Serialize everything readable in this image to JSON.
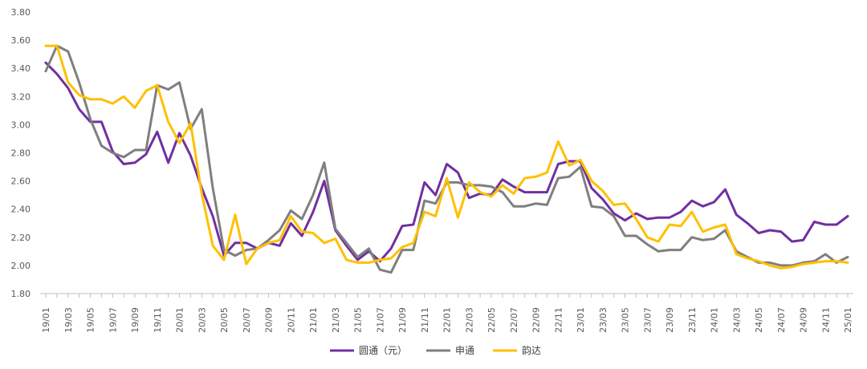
{
  "chart_data": {
    "type": "line",
    "title": "",
    "xlabel": "",
    "ylabel": "",
    "ylim": [
      1.8,
      3.8
    ],
    "yticks": [
      "1.80",
      "2.00",
      "2.20",
      "2.40",
      "2.60",
      "2.80",
      "3.00",
      "3.20",
      "3.40",
      "3.60",
      "3.80"
    ],
    "grid": false,
    "legend_position": "bottom-center",
    "x": [
      "19/01",
      "19/02",
      "19/03",
      "19/04",
      "19/05",
      "19/06",
      "19/07",
      "19/08",
      "19/09",
      "19/10",
      "19/11",
      "19/12",
      "20/01",
      "20/02",
      "20/03",
      "20/04",
      "20/05",
      "20/06",
      "20/07",
      "20/08",
      "20/09",
      "20/10",
      "20/11",
      "20/12",
      "21/01",
      "21/02",
      "21/03",
      "21/04",
      "21/05",
      "21/06",
      "21/07",
      "21/08",
      "21/09",
      "21/10",
      "21/11",
      "21/12",
      "22/01",
      "22/02",
      "22/03",
      "22/04",
      "22/05",
      "22/06",
      "22/07",
      "22/08",
      "22/09",
      "22/10",
      "22/11",
      "22/12",
      "23/01",
      "23/02",
      "23/03",
      "23/04",
      "23/05",
      "23/06",
      "23/07",
      "23/08",
      "23/09",
      "23/10",
      "23/11",
      "23/12",
      "24/01",
      "24/02",
      "24/03",
      "24/04",
      "24/05",
      "24/06",
      "24/07",
      "24/08",
      "24/09",
      "24/10",
      "24/11",
      "24/12",
      "25/01"
    ],
    "xtick_labels": [
      "19/01",
      "19/03",
      "19/05",
      "19/07",
      "19/09",
      "19/11",
      "20/01",
      "20/03",
      "20/05",
      "20/07",
      "20/09",
      "20/11",
      "21/01",
      "21/03",
      "21/05",
      "21/07",
      "21/09",
      "21/11",
      "22/01",
      "22/03",
      "22/05",
      "22/07",
      "22/09",
      "22/11",
      "23/01",
      "23/03",
      "23/05",
      "23/07",
      "23/09",
      "23/11",
      "24/01",
      "24/03",
      "24/05",
      "24/07",
      "24/09",
      "24/11",
      "25/01"
    ],
    "series": [
      {
        "name": "圆通（元）",
        "color": "#7030A0",
        "values": [
          3.44,
          3.36,
          3.26,
          3.11,
          3.02,
          3.02,
          2.81,
          2.72,
          2.73,
          2.79,
          2.95,
          2.73,
          2.94,
          2.78,
          2.55,
          2.35,
          2.07,
          2.16,
          2.16,
          2.12,
          2.16,
          2.14,
          2.3,
          2.21,
          2.38,
          2.6,
          2.25,
          2.14,
          2.04,
          2.1,
          2.03,
          2.12,
          2.28,
          2.29,
          2.59,
          2.5,
          2.72,
          2.66,
          2.48,
          2.51,
          2.5,
          2.61,
          2.56,
          2.52,
          2.52,
          2.52,
          2.72,
          2.74,
          2.74,
          2.55,
          2.47,
          2.37,
          2.32,
          2.37,
          2.33,
          2.34,
          2.34,
          2.38,
          2.46,
          2.42,
          2.45,
          2.54,
          2.36,
          2.3,
          2.23,
          2.25,
          2.24,
          2.17,
          2.18,
          2.31,
          2.29,
          2.29,
          2.35
        ]
      },
      {
        "name": "申通",
        "color": "#7F7F7F",
        "values": [
          3.38,
          3.56,
          3.52,
          3.3,
          3.04,
          2.85,
          2.8,
          2.77,
          2.82,
          2.82,
          3.28,
          3.25,
          3.3,
          2.97,
          3.11,
          2.55,
          2.11,
          2.07,
          2.11,
          2.12,
          2.18,
          2.25,
          2.39,
          2.33,
          2.5,
          2.73,
          2.26,
          2.16,
          2.06,
          2.12,
          1.97,
          1.95,
          2.11,
          2.11,
          2.46,
          2.44,
          2.59,
          2.59,
          2.57,
          2.57,
          2.56,
          2.52,
          2.42,
          2.42,
          2.44,
          2.43,
          2.62,
          2.63,
          2.7,
          2.42,
          2.41,
          2.35,
          2.21,
          2.21,
          2.15,
          2.1,
          2.11,
          2.11,
          2.2,
          2.18,
          2.19,
          2.25,
          2.1,
          2.06,
          2.02,
          2.02,
          2.0,
          2.0,
          2.02,
          2.03,
          2.08,
          2.02,
          2.06
        ]
      },
      {
        "name": "韵达",
        "color": "#FFC000",
        "values": [
          3.56,
          3.56,
          3.3,
          3.21,
          3.18,
          3.18,
          3.15,
          3.2,
          3.12,
          3.24,
          3.28,
          3.02,
          2.87,
          3.01,
          2.51,
          2.14,
          2.04,
          2.36,
          2.01,
          2.12,
          2.16,
          2.18,
          2.35,
          2.24,
          2.23,
          2.16,
          2.19,
          2.04,
          2.02,
          2.02,
          2.04,
          2.05,
          2.13,
          2.16,
          2.38,
          2.35,
          2.62,
          2.34,
          2.59,
          2.52,
          2.49,
          2.57,
          2.51,
          2.62,
          2.63,
          2.66,
          2.88,
          2.71,
          2.75,
          2.6,
          2.53,
          2.43,
          2.44,
          2.33,
          2.2,
          2.17,
          2.29,
          2.28,
          2.38,
          2.24,
          2.27,
          2.29,
          2.08,
          2.05,
          2.03,
          2.0,
          1.98,
          1.99,
          2.01,
          2.02,
          2.03,
          2.03,
          2.02
        ]
      }
    ]
  }
}
